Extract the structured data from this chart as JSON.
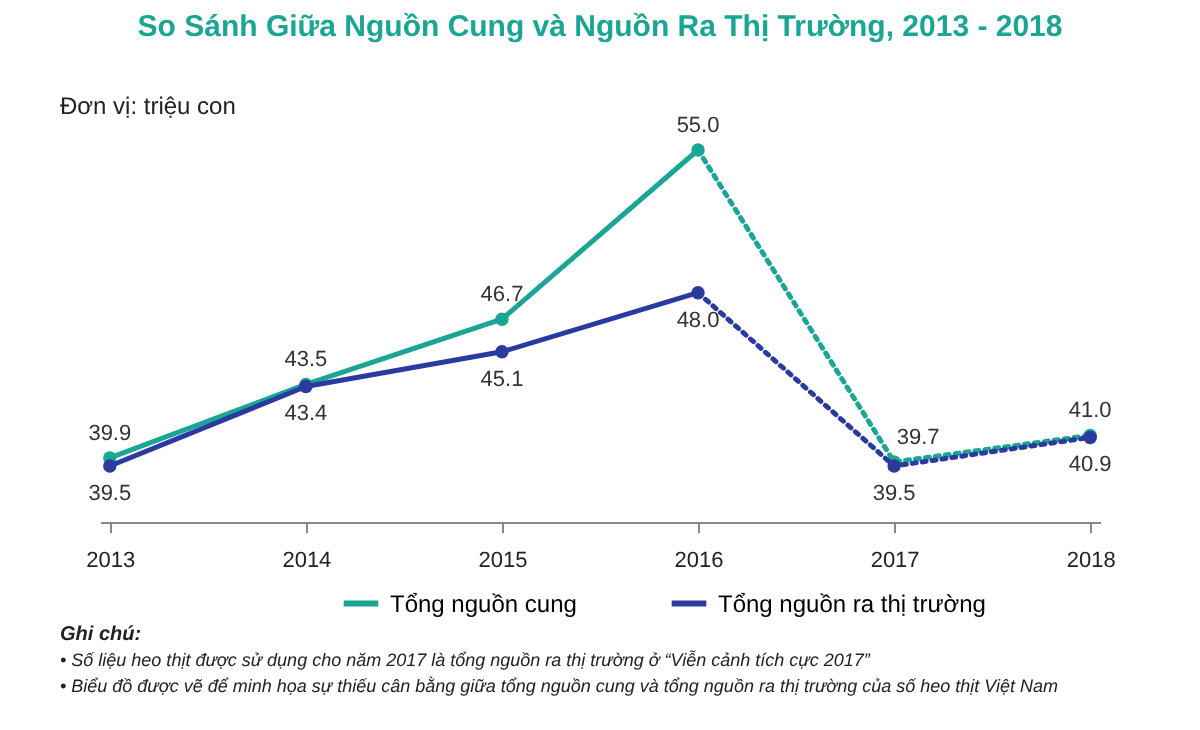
{
  "chart_data": {
    "type": "line",
    "title": "So Sánh Giữa Nguồn Cung và Nguồn Ra Thị Trường, 2013 - 2018",
    "categories": [
      "2013",
      "2014",
      "2015",
      "2016",
      "2017",
      "2018"
    ],
    "series": [
      {
        "name": "Tổng nguồn cung",
        "color": "#1aa595",
        "values": [
          39.9,
          43.5,
          46.7,
          55.0,
          null,
          null
        ],
        "value_labels": [
          "39.9",
          "43.5",
          "46.7",
          "55.0",
          null,
          null
        ]
      },
      {
        "name": "Tổng nguồn ra thị trường",
        "color": "#2b3a9e",
        "values": [
          39.5,
          43.4,
          45.1,
          48.0,
          null,
          null
        ],
        "value_labels": [
          "39.5",
          "43.4",
          "45.1",
          "48.0",
          null,
          null
        ]
      },
      {
        "color": "#1aa595",
        "line_style": "dotted",
        "values": [
          null,
          null,
          null,
          55.0,
          39.7,
          41.0
        ],
        "value_labels": [
          null,
          null,
          null,
          null,
          "39.7",
          "41.0"
        ]
      },
      {
        "color": "#2b3a9e",
        "line_style": "dotted",
        "values": [
          null,
          null,
          null,
          48.0,
          39.5,
          40.9
        ],
        "value_labels": [
          null,
          null,
          null,
          null,
          "39.5",
          "40.9"
        ]
      }
    ],
    "data_labels": true,
    "marker": "circle",
    "line_style": "solid",
    "legend": "bottom",
    "grid": false,
    "tick_labels": "x",
    "annotations": [
      "Đơn vị: triệu con",
      "Ghi chú:",
      "•   Số liệu heo thịt được sử dụng cho năm 2017 là tổng nguồn ra thị trường ở “Viễn cảnh tích cực 2017”",
      "•   Biểu đồ được vẽ để minh họa sự thiếu cân bằng giữa tổng nguồn cung và tổng nguồn ra thị trường của số heo thịt Việt Nam"
    ]
  }
}
